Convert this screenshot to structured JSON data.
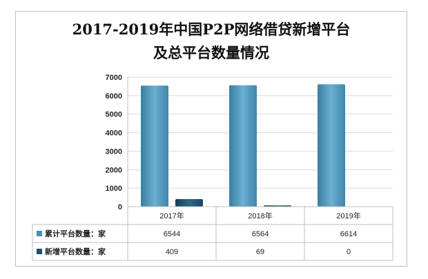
{
  "title_line1": "2017-2019年中国P2P网络借贷新增平台",
  "title_line2": "及总平台数量情况",
  "chart_data": {
    "type": "bar",
    "categories": [
      "2017年",
      "2018年",
      "2019年"
    ],
    "series": [
      {
        "name": "累计平台数量：家",
        "values": [
          6544,
          6564,
          6614
        ],
        "color": "#4a90b2"
      },
      {
        "name": "新增平台数量：家",
        "values": [
          409,
          69,
          0
        ],
        "color": "#1f4e6e"
      }
    ],
    "ylim": [
      0,
      7000
    ],
    "yticks": [
      0,
      1000,
      2000,
      3000,
      4000,
      5000,
      6000,
      7000
    ],
    "grid": true,
    "legend": "data-table"
  }
}
